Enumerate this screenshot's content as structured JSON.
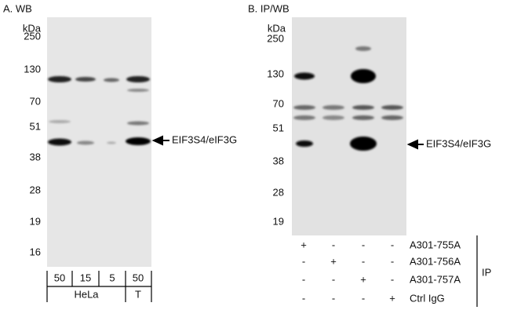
{
  "panels": [
    {
      "label": "A. WB",
      "unit": "kDa",
      "markers": [
        "250",
        "130",
        "70",
        "51",
        "38",
        "28",
        "19",
        "16"
      ],
      "arrow_label": "EIF3S4/eIF3G",
      "lanes": [
        "50",
        "15",
        "5",
        "50"
      ],
      "groups": [
        "HeLa",
        "T"
      ]
    },
    {
      "label": "B. IP/WB",
      "unit": "kDa",
      "markers": [
        "250",
        "130",
        "70",
        "51",
        "38",
        "28",
        "19"
      ],
      "arrow_label": "EIF3S4/eIF3G",
      "rows": [
        {
          "name": "A301-755A",
          "marks": [
            "+",
            "-",
            "-",
            "-"
          ]
        },
        {
          "name": "A301-756A",
          "marks": [
            "-",
            "+",
            "-",
            "-"
          ]
        },
        {
          "name": "A301-757A",
          "marks": [
            "-",
            "-",
            "+",
            "-"
          ]
        },
        {
          "name": "Ctrl IgG",
          "marks": [
            "-",
            "-",
            "-",
            "+"
          ]
        }
      ],
      "side_label": "IP"
    }
  ]
}
